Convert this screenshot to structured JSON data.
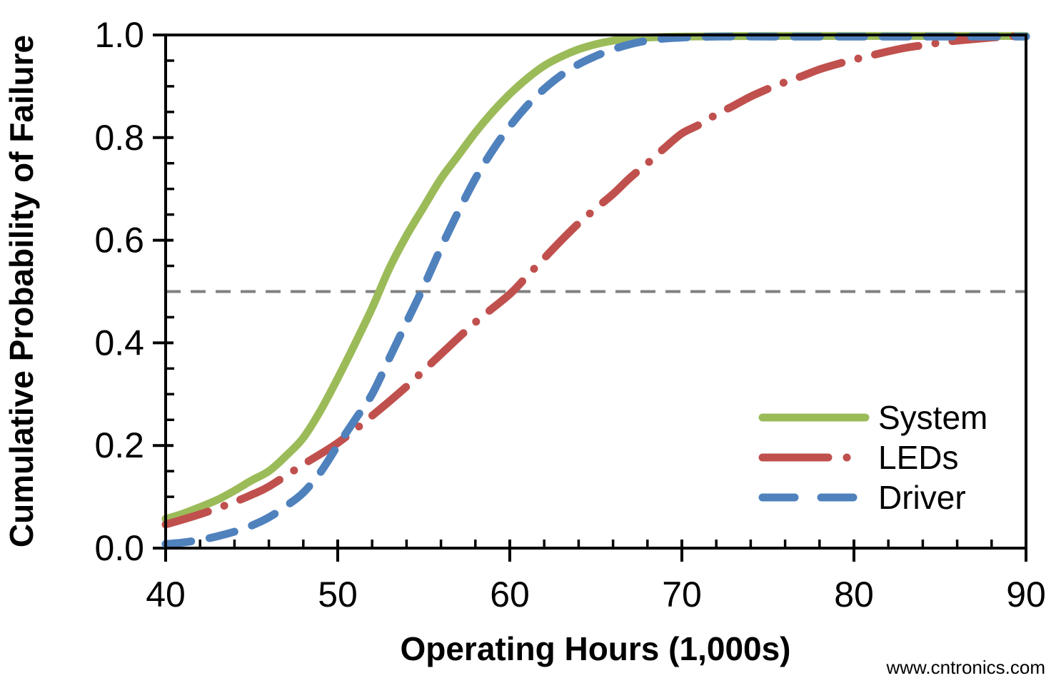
{
  "page": {
    "watermark": "www.cntronics.com"
  },
  "colors": {
    "axis": "#000000",
    "background": "#ffffff",
    "watermark": "#cbe6b1",
    "reference_gray": "#808080",
    "system_green": "#9BBB59",
    "leds_red": "#C0504D",
    "driver_blue": "#4F81BD"
  },
  "chart_data": {
    "type": "line",
    "title": "",
    "xlabel": "Operating Hours (1,000s)",
    "ylabel": "Cumulative Probability of Failure",
    "xlim": [
      40,
      90
    ],
    "ylim": [
      0,
      1
    ],
    "x_major_step": 10,
    "x_minor_step": 2,
    "y_major_step": 0.2,
    "y_minor_step": 0.05,
    "x_tick_labels": [
      "40",
      "50",
      "60",
      "70",
      "80",
      "90"
    ],
    "y_tick_labels": [
      "0.0",
      "0.2",
      "0.4",
      "0.6",
      "0.8",
      "1.0"
    ],
    "grid": false,
    "legend_position": "inside-right",
    "reference_line": {
      "y": 0.5,
      "color": "#808080",
      "style": "dashed"
    },
    "series": [
      {
        "name": "System",
        "color": "#9BBB59",
        "style": "solid",
        "median_crossing": 52.3,
        "points": [
          [
            40,
            0.057
          ],
          [
            41,
            0.067
          ],
          [
            42,
            0.08
          ],
          [
            43,
            0.094
          ],
          [
            44,
            0.112
          ],
          [
            45,
            0.132
          ],
          [
            46,
            0.15
          ],
          [
            47,
            0.18
          ],
          [
            48,
            0.215
          ],
          [
            49,
            0.268
          ],
          [
            50,
            0.331
          ],
          [
            51,
            0.398
          ],
          [
            52,
            0.468
          ],
          [
            53,
            0.545
          ],
          [
            54,
            0.609
          ],
          [
            55,
            0.665
          ],
          [
            56,
            0.72
          ],
          [
            57,
            0.765
          ],
          [
            58,
            0.81
          ],
          [
            59,
            0.85
          ],
          [
            60,
            0.885
          ],
          [
            61,
            0.915
          ],
          [
            62,
            0.94
          ],
          [
            63,
            0.958
          ],
          [
            64,
            0.972
          ],
          [
            65,
            0.982
          ],
          [
            66,
            0.989
          ],
          [
            67,
            0.993
          ],
          [
            68,
            0.995
          ],
          [
            70,
            0.997
          ],
          [
            75,
            0.998
          ],
          [
            80,
            0.998
          ],
          [
            85,
            0.998
          ],
          [
            90,
            0.998
          ]
        ]
      },
      {
        "name": "LEDs",
        "color": "#C0504D",
        "style": "dash-dot",
        "median_crossing": 60.3,
        "points": [
          [
            40,
            0.046
          ],
          [
            42,
            0.066
          ],
          [
            44,
            0.09
          ],
          [
            45,
            0.104
          ],
          [
            46,
            0.12
          ],
          [
            48,
            0.163
          ],
          [
            50,
            0.205
          ],
          [
            52,
            0.258
          ],
          [
            54,
            0.315
          ],
          [
            56,
            0.378
          ],
          [
            58,
            0.44
          ],
          [
            60,
            0.495
          ],
          [
            61,
            0.53
          ],
          [
            62,
            0.565
          ],
          [
            63,
            0.6
          ],
          [
            64,
            0.633
          ],
          [
            65,
            0.662
          ],
          [
            66,
            0.69
          ],
          [
            67,
            0.722
          ],
          [
            68,
            0.75
          ],
          [
            69,
            0.78
          ],
          [
            70,
            0.808
          ],
          [
            71,
            0.825
          ],
          [
            72,
            0.845
          ],
          [
            73,
            0.862
          ],
          [
            74,
            0.88
          ],
          [
            75,
            0.895
          ],
          [
            76,
            0.908
          ],
          [
            77,
            0.92
          ],
          [
            78,
            0.933
          ],
          [
            79,
            0.943
          ],
          [
            80,
            0.952
          ],
          [
            81,
            0.96
          ],
          [
            82,
            0.968
          ],
          [
            83,
            0.975
          ],
          [
            84,
            0.98
          ],
          [
            85,
            0.985
          ],
          [
            86,
            0.989
          ],
          [
            87,
            0.992
          ],
          [
            88,
            0.995
          ],
          [
            89,
            0.997
          ],
          [
            90,
            0.998
          ]
        ]
      },
      {
        "name": "Driver",
        "color": "#4F81BD",
        "style": "dashed",
        "median_crossing": 55.0,
        "points": [
          [
            40,
            0.008
          ],
          [
            41,
            0.011
          ],
          [
            42,
            0.016
          ],
          [
            43,
            0.023
          ],
          [
            44,
            0.032
          ],
          [
            45,
            0.044
          ],
          [
            46,
            0.06
          ],
          [
            47,
            0.082
          ],
          [
            48,
            0.108
          ],
          [
            49,
            0.148
          ],
          [
            50,
            0.2
          ],
          [
            51,
            0.25
          ],
          [
            52,
            0.3
          ],
          [
            53,
            0.37
          ],
          [
            54,
            0.44
          ],
          [
            55,
            0.51
          ],
          [
            56,
            0.585
          ],
          [
            57,
            0.655
          ],
          [
            58,
            0.72
          ],
          [
            59,
            0.775
          ],
          [
            60,
            0.822
          ],
          [
            61,
            0.862
          ],
          [
            62,
            0.895
          ],
          [
            63,
            0.922
          ],
          [
            64,
            0.943
          ],
          [
            65,
            0.959
          ],
          [
            66,
            0.972
          ],
          [
            67,
            0.982
          ],
          [
            68,
            0.989
          ],
          [
            69,
            0.993
          ],
          [
            70,
            0.995
          ],
          [
            72,
            0.997
          ],
          [
            75,
            0.997
          ],
          [
            80,
            0.997
          ],
          [
            85,
            0.997
          ],
          [
            90,
            0.997
          ]
        ]
      }
    ]
  }
}
